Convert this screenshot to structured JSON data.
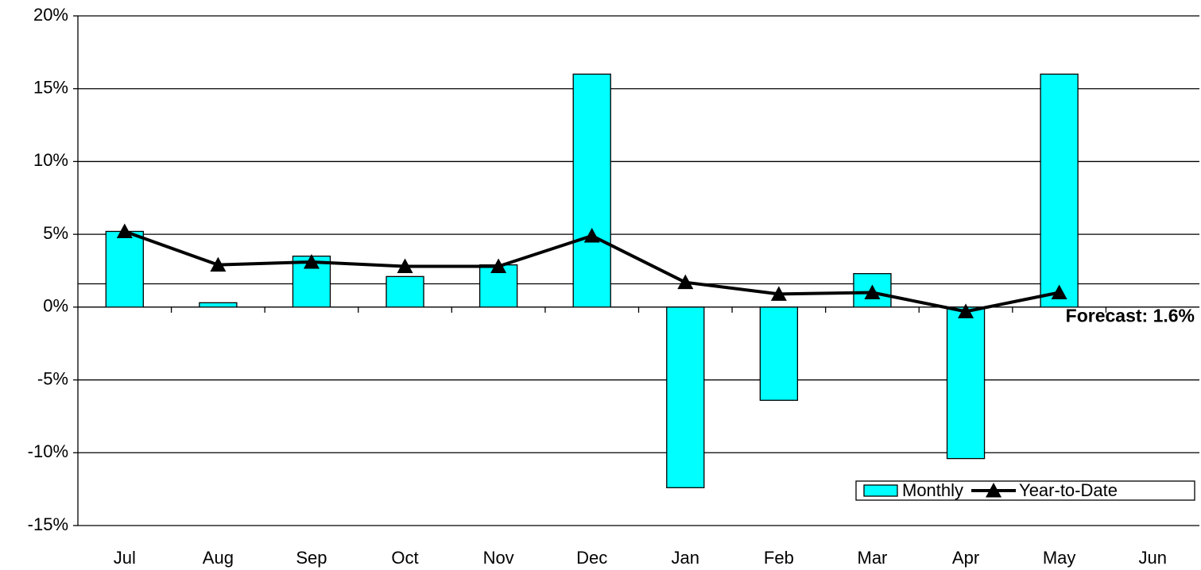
{
  "chart_data": {
    "type": "bar",
    "categories": [
      "Jul",
      "Aug",
      "Sep",
      "Oct",
      "Nov",
      "Dec",
      "Jan",
      "Feb",
      "Mar",
      "Apr",
      "May",
      "Jun"
    ],
    "series": [
      {
        "name": "Monthly",
        "type": "bar",
        "color": "#00ffff",
        "values": [
          5.2,
          0.3,
          3.5,
          2.1,
          2.9,
          16.0,
          -12.4,
          -6.4,
          2.3,
          -10.4,
          16.0,
          null
        ]
      },
      {
        "name": "Year-to-Date",
        "type": "line",
        "color": "#000000",
        "values": [
          5.2,
          2.9,
          3.1,
          2.8,
          2.8,
          4.9,
          1.7,
          0.9,
          1.0,
          -0.3,
          1.0,
          null
        ]
      }
    ],
    "forecast": 1.6,
    "annotation": "Forecast: 1.6%",
    "ylim": [
      -15,
      20
    ],
    "yticks": [
      {
        "value": -15,
        "label": "-15%"
      },
      {
        "value": -10,
        "label": "-10%"
      },
      {
        "value": -5,
        "label": "-5%"
      },
      {
        "value": 0,
        "label": "0%"
      },
      {
        "value": 5,
        "label": "5%"
      },
      {
        "value": 10,
        "label": "10%"
      },
      {
        "value": 15,
        "label": "15%"
      },
      {
        "value": 20,
        "label": "20%"
      }
    ],
    "grid": true,
    "legend": "lower right"
  }
}
